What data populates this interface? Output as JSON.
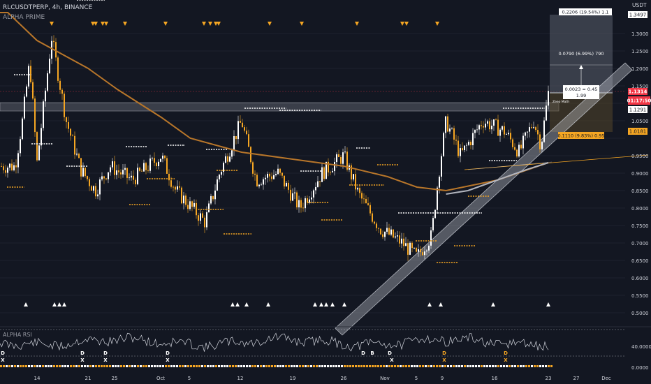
{
  "header": {
    "symbol_line": "RLCUSDTPERP, 4h, BINANCE",
    "indicator_name": "ALPHA PRIME"
  },
  "sub_panel": {
    "label": "ALPHA RSI",
    "right_ticks": [
      "40.0000",
      "0.0000"
    ],
    "markers": [
      {
        "label": "X",
        "x": 4
      },
      {
        "label": "D",
        "x": 4
      },
      {
        "label": "X",
        "x": 118
      },
      {
        "label": "D",
        "x": 118
      },
      {
        "label": "X",
        "x": 151
      },
      {
        "label": "D",
        "x": 151
      },
      {
        "label": "X",
        "x": 240
      },
      {
        "label": "D",
        "x": 240
      },
      {
        "label": "D",
        "x": 520
      },
      {
        "label": "B",
        "x": 533
      },
      {
        "label": "D",
        "x": 558
      },
      {
        "label": "X",
        "x": 561
      },
      {
        "label": "D",
        "x": 636
      },
      {
        "label": "X",
        "x": 636
      },
      {
        "label": "D",
        "x": 724
      },
      {
        "label": "X",
        "x": 724
      }
    ]
  },
  "price_axis": {
    "currency": "USDT",
    "ticks": [
      "1.3000",
      "1.2500",
      "1.2000",
      "1.1500",
      "1.0500",
      "0.9500",
      "0.9000",
      "0.8500",
      "0.8000",
      "0.7500",
      "0.7000",
      "0.6500",
      "0.6000",
      "0.5500",
      "0.5000"
    ]
  },
  "price_labels": {
    "target_top": {
      "text": "1.3497",
      "color": "#ffffff",
      "text_color": "#131722"
    },
    "last_price": {
      "text": "1.1314",
      "color": "#f23645",
      "text_color": "#ffffff"
    },
    "countdown": {
      "text": "01:17:50",
      "color": "#f23645",
      "text_color": "#ffffff"
    },
    "entry": {
      "text": "1.1291",
      "color": "#ffffff",
      "text_color": "#131722"
    },
    "stop": {
      "text": "1.0181",
      "color": "#f5a623",
      "text_color": "#131722"
    }
  },
  "time_axis": {
    "ticks": [
      "14",
      "21",
      "25",
      "Oct",
      "5",
      "12",
      "19",
      "26",
      "Nov",
      "5",
      "9",
      "16",
      "23",
      "27",
      "Dec"
    ]
  },
  "position_tool": {
    "top_label": "0.2206 (19.54%) 1.1",
    "mid_label": "0.0790 (6.99%) 790",
    "center_label_1": "0.0023 ≈ 0.45",
    "center_label_2": "1.99",
    "bottom_label": "0.1110 (9.83%) 0.95",
    "small_text": "Zeeo Math"
  },
  "colors": {
    "background": "#131722",
    "candle_up": "#ffffff",
    "candle_down": "#f5a623",
    "ma": "#b8762a",
    "profit_zone": "#4a4f5c",
    "loss_zone": "#3d3320",
    "channel": "#8a8f9c",
    "triangle_marker": "#ffffff",
    "arrow_marker": "#f5a623",
    "rsi_line": "#d1d4dc",
    "last_price": "#f23645"
  },
  "chart_data": {
    "type": "candlestick",
    "symbol": "RLCUSDTPERP",
    "timeframe": "4h",
    "exchange": "BINANCE",
    "y_range": [
      0.46,
      1.36
    ],
    "price_path": [
      {
        "t": "Sep 11",
        "price": 0.92
      },
      {
        "t": "Sep 12",
        "price": 1.05
      },
      {
        "t": "Sep 13",
        "price": 1.22
      },
      {
        "t": "Sep 14",
        "price": 0.93
      },
      {
        "t": "Sep 16",
        "price": 1.29
      },
      {
        "t": "Sep 18",
        "price": 1.05
      },
      {
        "t": "Sep 20",
        "price": 0.91
      },
      {
        "t": "Sep 22",
        "price": 0.85
      },
      {
        "t": "Sep 24",
        "price": 0.92
      },
      {
        "t": "Sep 27",
        "price": 0.88
      },
      {
        "t": "Oct 1",
        "price": 0.95
      },
      {
        "t": "Oct 3",
        "price": 0.85
      },
      {
        "t": "Oct 7",
        "price": 0.76
      },
      {
        "t": "Oct 9",
        "price": 0.9
      },
      {
        "t": "Oct 12",
        "price": 1.05
      },
      {
        "t": "Oct 14",
        "price": 0.88
      },
      {
        "t": "Oct 17",
        "price": 0.9
      },
      {
        "t": "Oct 20",
        "price": 0.8
      },
      {
        "t": "Oct 23",
        "price": 0.9
      },
      {
        "t": "Oct 26",
        "price": 0.95
      },
      {
        "t": "Oct 28",
        "price": 0.84
      },
      {
        "t": "Oct 31",
        "price": 0.74
      },
      {
        "t": "Nov 3",
        "price": 0.7
      },
      {
        "t": "Nov 5",
        "price": 0.66
      },
      {
        "t": "Nov 7",
        "price": 0.72
      },
      {
        "t": "Nov 8",
        "price": 0.9
      },
      {
        "t": "Nov 9",
        "price": 1.05
      },
      {
        "t": "Nov 11",
        "price": 0.95
      },
      {
        "t": "Nov 14",
        "price": 1.05
      },
      {
        "t": "Nov 17",
        "price": 1.02
      },
      {
        "t": "Nov 19",
        "price": 0.96
      },
      {
        "t": "Nov 21",
        "price": 1.05
      },
      {
        "t": "Nov 22",
        "price": 0.98
      },
      {
        "t": "Nov 23",
        "price": 1.13
      }
    ],
    "moving_average": [
      {
        "t": "Sep 10",
        "price": 1.36
      },
      {
        "t": "Sep 14",
        "price": 1.28
      },
      {
        "t": "Sep 21",
        "price": 1.2
      },
      {
        "t": "Sep 25",
        "price": 1.14
      },
      {
        "t": "Oct 1",
        "price": 1.06
      },
      {
        "t": "Oct 5",
        "price": 1.0
      },
      {
        "t": "Oct 12",
        "price": 0.96
      },
      {
        "t": "Oct 19",
        "price": 0.94
      },
      {
        "t": "Oct 26",
        "price": 0.92
      },
      {
        "t": "Nov 1",
        "price": 0.89
      },
      {
        "t": "Nov 5",
        "price": 0.86
      },
      {
        "t": "Nov 9",
        "price": 0.85
      },
      {
        "t": "Nov 16",
        "price": 0.88
      },
      {
        "t": "Nov 23",
        "price": 0.93
      }
    ],
    "second_average": [
      {
        "t": "Nov 9",
        "price": 0.84
      },
      {
        "t": "Nov 12",
        "price": 0.85
      },
      {
        "t": "Nov 16",
        "price": 0.88
      },
      {
        "t": "Nov 20",
        "price": 0.91
      },
      {
        "t": "Nov 23",
        "price": 0.93
      }
    ],
    "horizontal_zone": [
      1.125,
      1.145
    ],
    "long_position": {
      "entry": 1.1291,
      "stop": 1.0181,
      "target": 1.3497,
      "last": 1.1314
    }
  }
}
